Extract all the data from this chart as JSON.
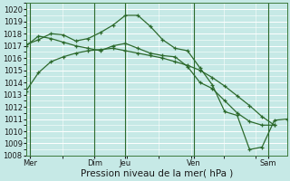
{
  "xlabel": "Pression niveau de la mer( hPa )",
  "bg_color": "#c6e9e6",
  "grid_color": "#ffffff",
  "line_color": "#2d6a2d",
  "ylim": [
    1008,
    1020.5
  ],
  "yticks": [
    1008,
    1009,
    1010,
    1011,
    1012,
    1013,
    1014,
    1015,
    1016,
    1017,
    1018,
    1019,
    1020
  ],
  "xlim": [
    0,
    21
  ],
  "xtick_labels": [
    "Mer",
    "Dim",
    "Jeu",
    "Ven",
    "Sam"
  ],
  "xtick_positions": [
    0.3,
    5.5,
    8.0,
    13.5,
    19.5
  ],
  "vline_positions": [
    0.3,
    5.5,
    8.0,
    13.5,
    19.5
  ],
  "series": [
    {
      "x": [
        0,
        1,
        2,
        3,
        4,
        5,
        6,
        7,
        8,
        9,
        10,
        11,
        12,
        13,
        14,
        15,
        16,
        17,
        18,
        19,
        20
      ],
      "y": [
        1013.3,
        1014.8,
        1015.7,
        1016.1,
        1016.4,
        1016.6,
        1016.7,
        1016.8,
        1016.6,
        1016.4,
        1016.2,
        1016.0,
        1015.7,
        1015.4,
        1015.0,
        1014.4,
        1013.7,
        1012.9,
        1012.1,
        1011.2,
        1010.5
      ]
    },
    {
      "x": [
        0,
        1,
        2,
        3,
        4,
        5,
        6,
        7,
        8,
        9,
        10,
        11,
        12,
        13,
        14,
        15,
        16,
        17,
        18,
        19,
        20
      ],
      "y": [
        1017.0,
        1017.8,
        1017.6,
        1017.3,
        1017.0,
        1016.8,
        1016.6,
        1017.0,
        1017.2,
        1016.8,
        1016.4,
        1016.2,
        1016.1,
        1015.3,
        1014.0,
        1013.5,
        1012.5,
        1011.5,
        1010.8,
        1010.5,
        1010.5
      ]
    },
    {
      "x": [
        0,
        1,
        2,
        3,
        4,
        5,
        6,
        7,
        8,
        9,
        10,
        11,
        12,
        13,
        14,
        15,
        16,
        17,
        18,
        19,
        20,
        21
      ],
      "y": [
        1017.1,
        1017.5,
        1018.0,
        1017.9,
        1017.4,
        1017.6,
        1018.1,
        1018.7,
        1019.5,
        1019.5,
        1018.6,
        1017.5,
        1016.8,
        1016.6,
        1015.2,
        1013.8,
        1011.6,
        1011.3,
        1008.5,
        1008.7,
        1010.9,
        1011.0
      ]
    }
  ],
  "marker": "+",
  "marker_size": 3,
  "linewidth": 0.9,
  "tick_fontsize": 6,
  "xlabel_fontsize": 7.5
}
